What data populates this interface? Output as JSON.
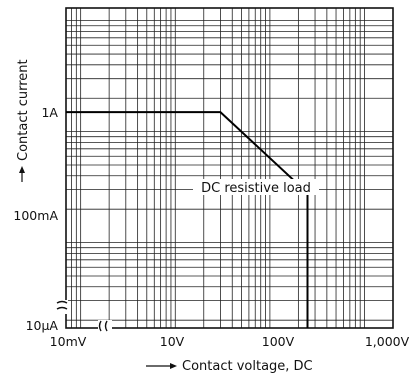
{
  "chart_data": {
    "type": "line",
    "x_scale": "log",
    "y_scale": "log",
    "x_ticks": [
      {
        "value": 0.01,
        "label": "10mV"
      },
      {
        "value": 10,
        "label": "10V"
      },
      {
        "value": 100,
        "label": "100V"
      },
      {
        "value": 1000,
        "label": "1,000V"
      }
    ],
    "y_ticks": [
      {
        "value": 1e-05,
        "label": "10μA"
      },
      {
        "value": 0.1,
        "label": "100mA"
      },
      {
        "value": 1,
        "label": "1A"
      }
    ],
    "xlabel": "Contact voltage, DC",
    "ylabel": "Contact current",
    "xlim": [
      0.7,
      2000
    ],
    "ylim": [
      0.017,
      13
    ],
    "grid": true,
    "axis_break": true,
    "series": [
      {
        "name": "DC resistive load",
        "x": [
          0.7,
          30,
          250,
          250
        ],
        "y": [
          1.5,
          1.5,
          0.28,
          0.017
        ]
      }
    ]
  }
}
